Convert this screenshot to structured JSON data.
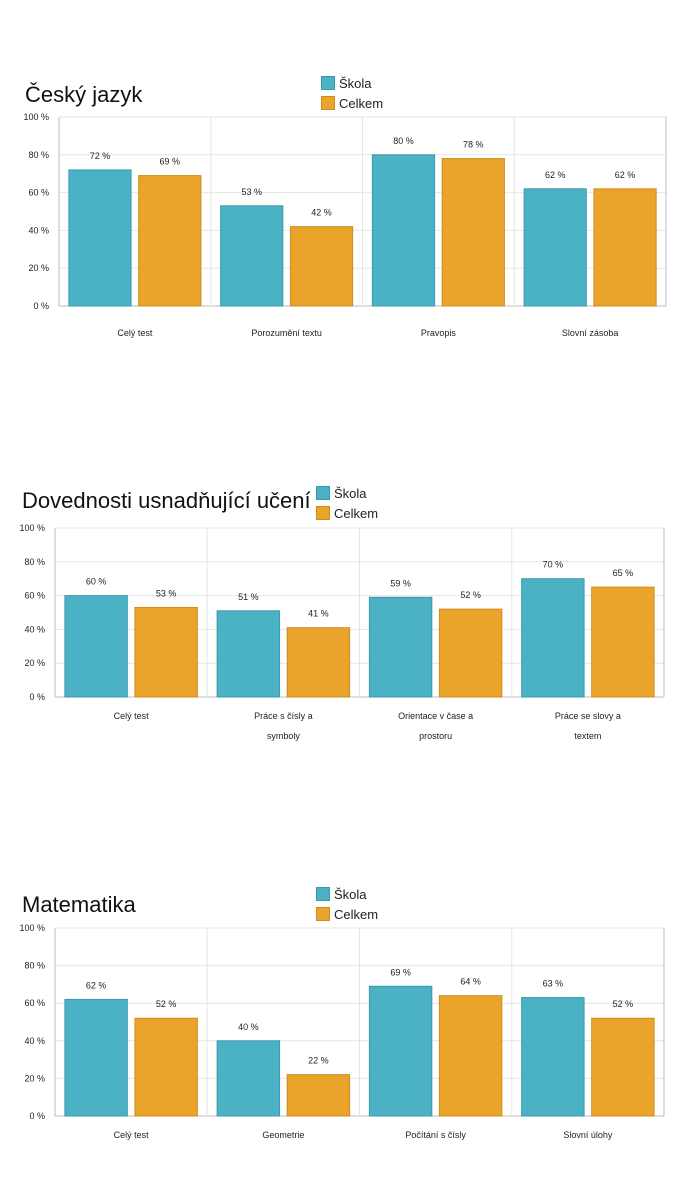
{
  "colors": {
    "skola": "#4bb2c5",
    "celkem": "#eaa42b",
    "grid": "#e6e6e6",
    "axis": "#bdbdbd"
  },
  "chart_data": [
    {
      "type": "bar",
      "title": "Český jazyk",
      "categories": [
        [
          "Celý test"
        ],
        [
          "Porozumění textu"
        ],
        [
          "Pravopis"
        ],
        [
          "Slovní zásoba"
        ]
      ],
      "series": [
        {
          "name": "Škola",
          "values": [
            72,
            53,
            80,
            62
          ]
        },
        {
          "name": "Celkem",
          "values": [
            69,
            42,
            78,
            62
          ]
        }
      ],
      "value_labels": [
        [
          "72 %",
          "53 %",
          "80 %",
          "62 %"
        ],
        [
          "69 %",
          "42 %",
          "78 %",
          "62 %"
        ]
      ],
      "yticks": [
        "0 %",
        "20 %",
        "40 %",
        "60 %",
        "80 %",
        "100 %"
      ],
      "ylim": [
        0,
        100
      ],
      "grid": true,
      "legend_position": "top"
    },
    {
      "type": "bar",
      "title": "Dovednosti usnadňující učení",
      "categories": [
        [
          "Celý test"
        ],
        [
          "Práce s čísly a",
          "symboly"
        ],
        [
          "Orientace v čase a",
          "prostoru"
        ],
        [
          "Práce se slovy a",
          "textem"
        ]
      ],
      "series": [
        {
          "name": "Škola",
          "values": [
            60,
            51,
            59,
            70
          ]
        },
        {
          "name": "Celkem",
          "values": [
            53,
            41,
            52,
            65
          ]
        }
      ],
      "value_labels": [
        [
          "60 %",
          "51 %",
          "59 %",
          "70 %"
        ],
        [
          "53 %",
          "41 %",
          "52 %",
          "65 %"
        ]
      ],
      "yticks": [
        "0 %",
        "20 %",
        "40 %",
        "60 %",
        "80 %",
        "100 %"
      ],
      "ylim": [
        0,
        100
      ],
      "grid": true,
      "legend_position": "top"
    },
    {
      "type": "bar",
      "title": "Matematika",
      "categories": [
        [
          "Celý test"
        ],
        [
          "Geometrie"
        ],
        [
          "Počítání s čísly"
        ],
        [
          "Slovní úlohy"
        ]
      ],
      "series": [
        {
          "name": "Škola",
          "values": [
            62,
            40,
            69,
            63
          ]
        },
        {
          "name": "Celkem",
          "values": [
            52,
            22,
            64,
            52
          ]
        }
      ],
      "value_labels": [
        [
          "62 %",
          "40 %",
          "69 %",
          "63 %"
        ],
        [
          "52 %",
          "22 %",
          "64 %",
          "52 %"
        ]
      ],
      "yticks": [
        "0 %",
        "20 %",
        "40 %",
        "60 %",
        "80 %",
        "100 %"
      ],
      "ylim": [
        0,
        100
      ],
      "grid": true,
      "legend_position": "top"
    }
  ]
}
